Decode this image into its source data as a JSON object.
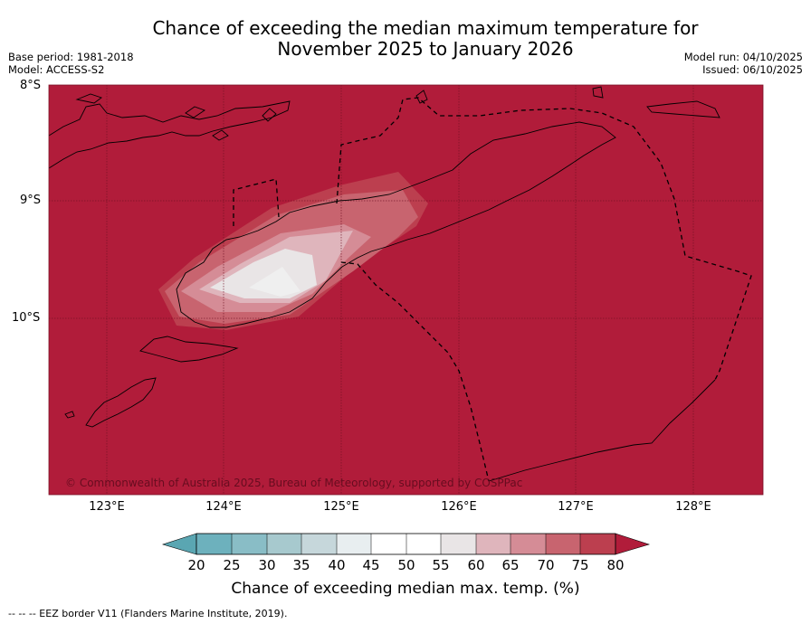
{
  "header": {
    "title_line1": "Chance of exceeding the median maximum temperature for",
    "title_line2": "November 2025 to January 2026",
    "base_period": "Base period: 1981-2018",
    "model": "Model: ACCESS-S2",
    "model_run": "Model run: 04/10/2025",
    "issued": "Issued: 06/10/2025"
  },
  "map": {
    "lat_labels": [
      "8°S",
      "9°S",
      "10°S"
    ],
    "lon_labels": [
      "123°E",
      "124°E",
      "125°E",
      "126°E",
      "127°E",
      "128°E"
    ],
    "copyright": "© Commonwealth of Australia 2025, Bureau of Meteorology, supported by COSPPac",
    "dominant_color": "#b11c3a"
  },
  "colorbar": {
    "ticks": [
      "20",
      "25",
      "30",
      "35",
      "40",
      "45",
      "50",
      "55",
      "60",
      "65",
      "70",
      "75",
      "80"
    ],
    "colors": [
      "#5aa6b2",
      "#6db1bd",
      "#89bdc6",
      "#a7c9ce",
      "#c6d7db",
      "#e8eef0",
      "#ffffff",
      "#ffffff",
      "#e9e5e6",
      "#dfb5bc",
      "#d58c96",
      "#c8646f",
      "#bc3f4f",
      "#b11c3a"
    ],
    "label": "Chance of exceeding median max. temp. (%)"
  },
  "footer": {
    "eez_note": "-- -- -- EEZ border V11 (Flanders Marine Institute, 2019)."
  }
}
